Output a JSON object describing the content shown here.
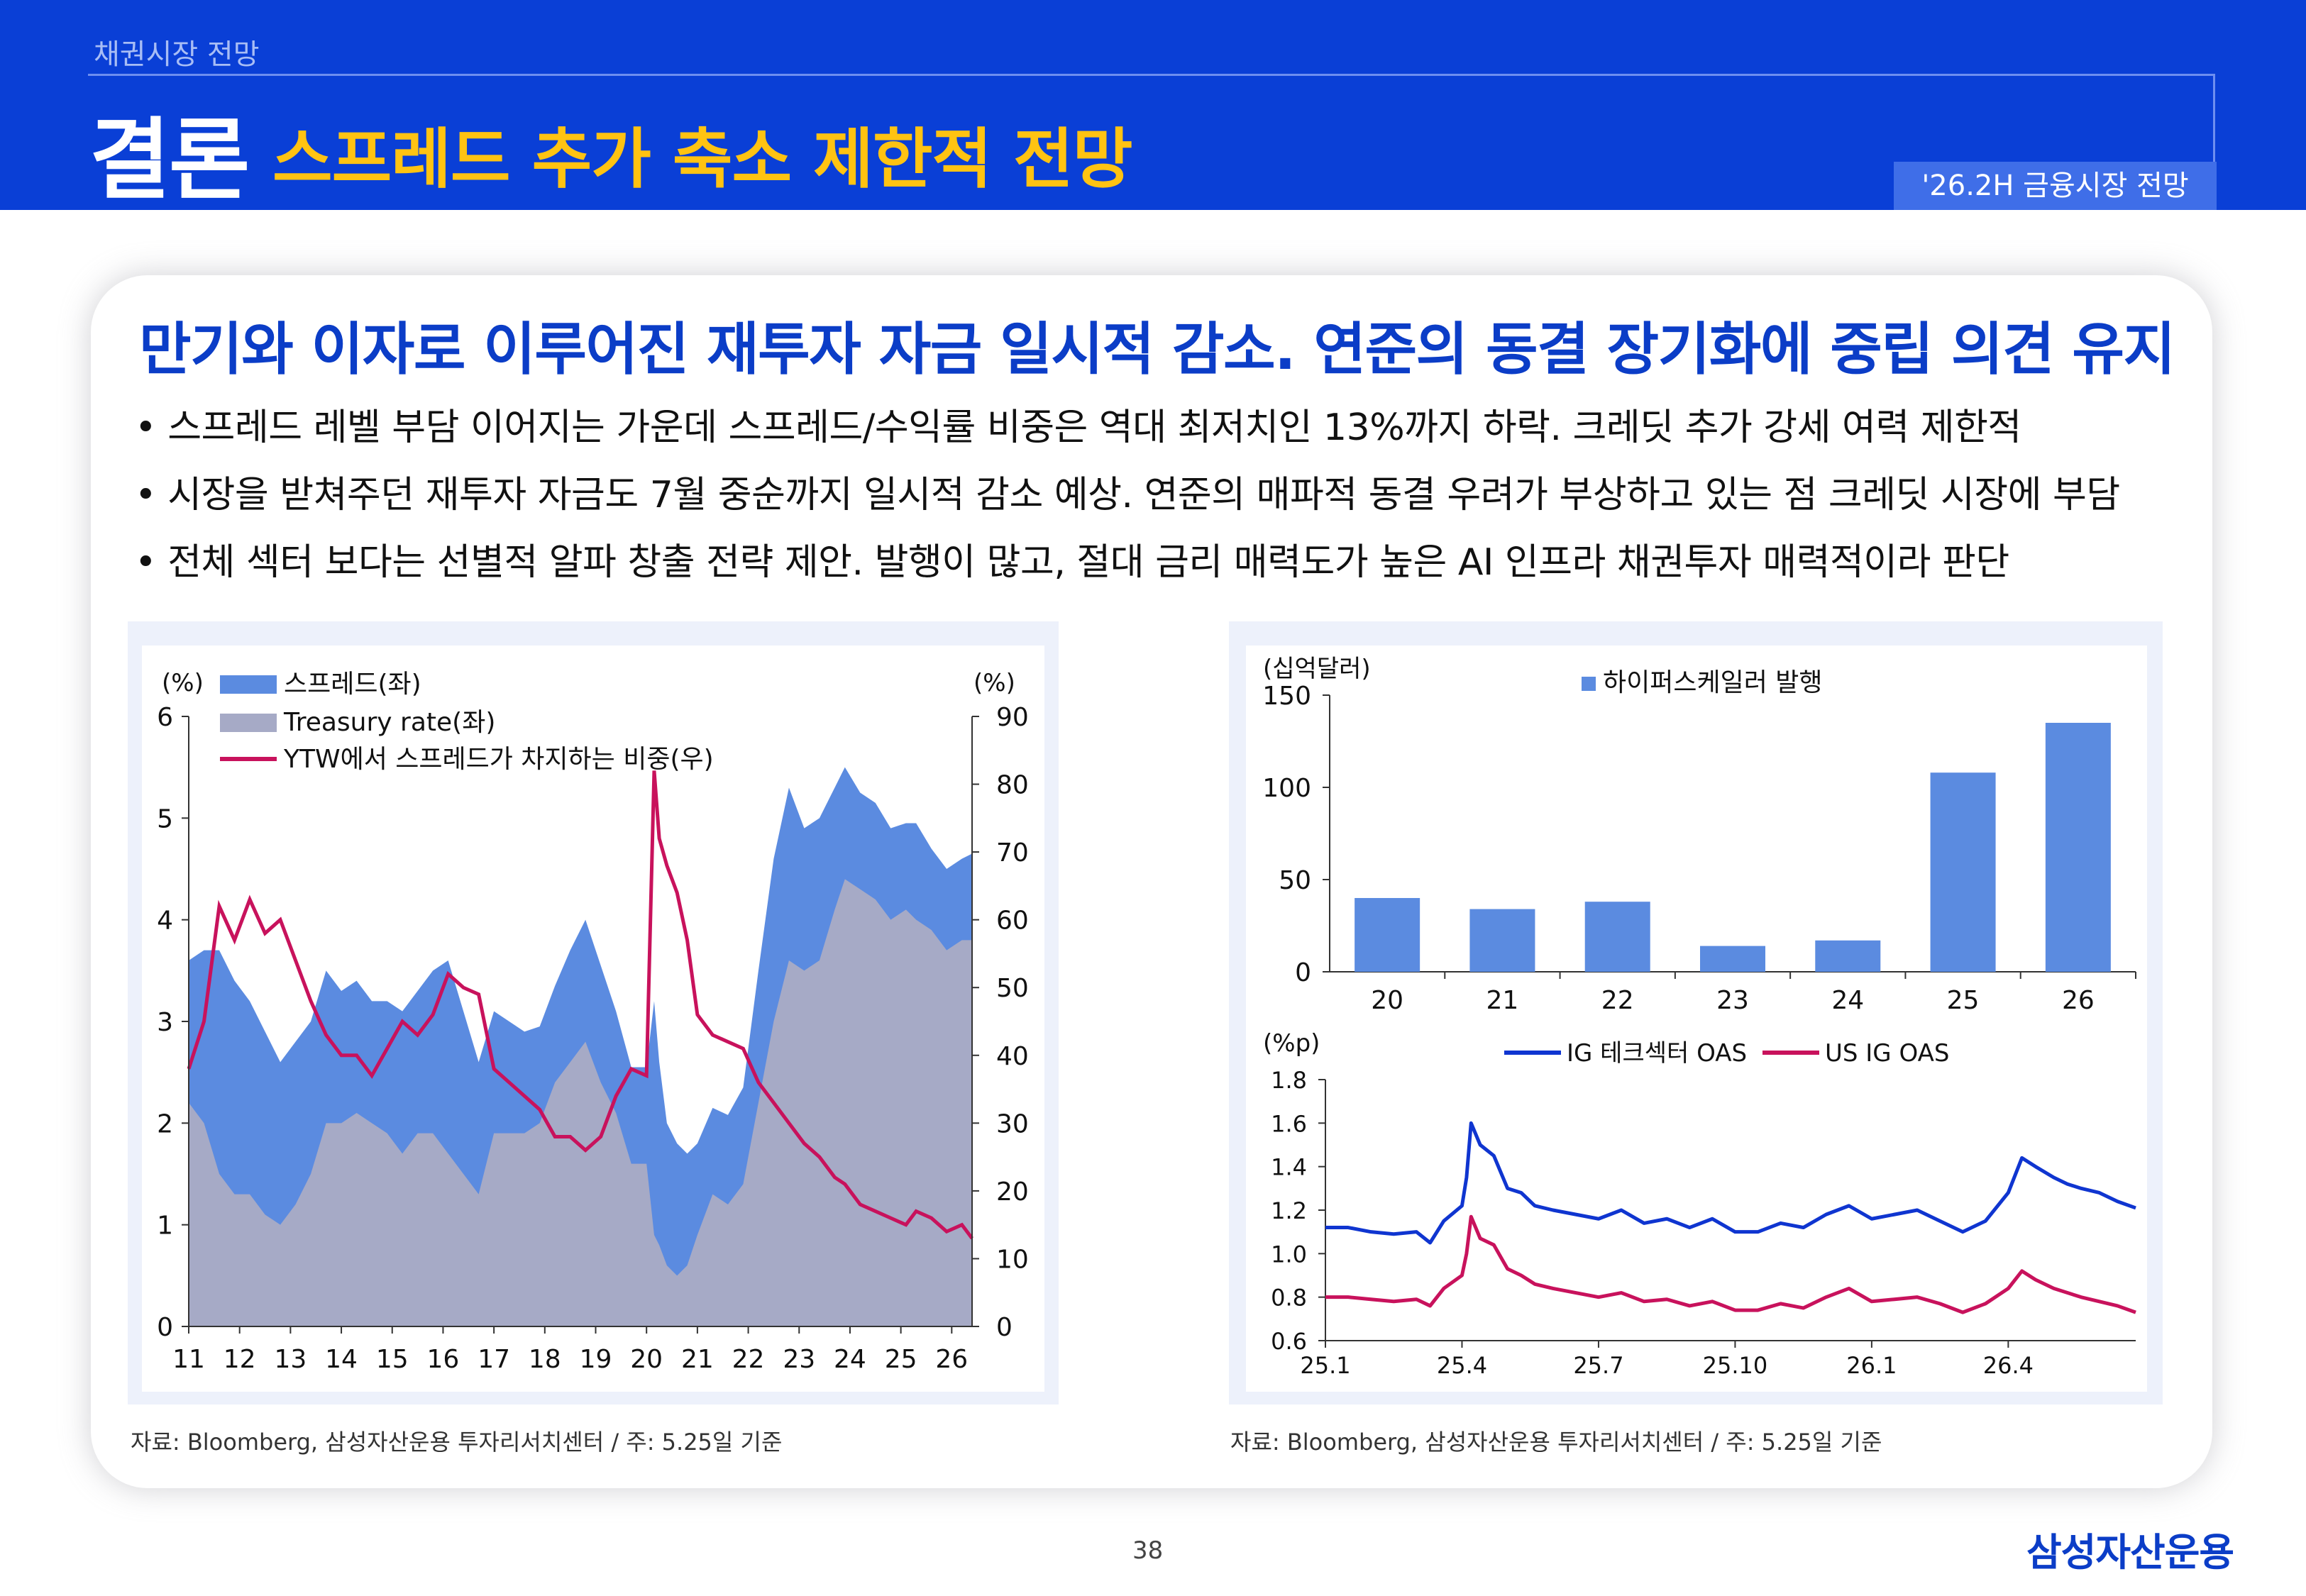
{
  "header": {
    "section": "채권시장 전망",
    "title": "결론",
    "subtitle": "스프레드 추가 축소 제한적 전망",
    "report_tag": "'26.2H 금융시장 전망"
  },
  "card": {
    "headline": "만기와 이자로 이루어진 재투자 자금 일시적 감소. 연준의 동결 장기화에 중립 의견 유지",
    "bullets": [
      "• 스프레드 레벨 부담 이어지는 가운데 스프레드/수익률 비중은 역대 최저치인 13%까지 하락. 크레딧 추가 강세 여력 제한적",
      "• 시장을 받쳐주던 재투자 자금도 7월 중순까지 일시적 감소 예상. 연준의 매파적 동결 우려가 부상하고 있는 점 크레딧 시장에 부담",
      "• 전체 섹터 보다는 선별적 알파 창출 전략 제안. 발행이 많고, 절대 금리 매력도가 높은 AI 인프라 채권투자 매력적이라 판단"
    ]
  },
  "sources": {
    "left": "자료: Bloomberg, 삼성자산운용 투자리서치센터 / 주: 5.25일 기준",
    "right": "자료: Bloomberg, 삼성자산운용 투자리서치센터 / 주: 5.25일 기준"
  },
  "footer": {
    "page": "38",
    "logo": "삼성자산운용"
  },
  "colors": {
    "blue_header": "#0a3fd6",
    "title_yellow": "#ffc312",
    "spread": "#5b8be0",
    "treasury": "#a6aac6",
    "ratio": "#c8125c",
    "bar": "#5b8be0",
    "ig_tech": "#0f35d0",
    "us_ig": "#c8125c"
  },
  "chart_data": [
    {
      "type": "area",
      "left_unit": "(%)",
      "right_unit": "(%)",
      "x_ticks": [
        "11",
        "12",
        "13",
        "14",
        "15",
        "16",
        "17",
        "18",
        "19",
        "20",
        "21",
        "22",
        "23",
        "24",
        "25",
        "26"
      ],
      "y_left": {
        "ticks": [
          "0",
          "1",
          "2",
          "3",
          "4",
          "5",
          "6"
        ],
        "range": [
          0,
          6
        ]
      },
      "y_right": {
        "ticks": [
          "0",
          "10",
          "20",
          "30",
          "40",
          "50",
          "60",
          "70",
          "80",
          "90"
        ],
        "range": [
          0,
          90
        ]
      },
      "legend": [
        "스프레드(좌)",
        "Treasury rate(좌)",
        "YTW에서 스프레드가 차지하는 비중(우)"
      ],
      "x_range": [
        2011.0,
        2026.4
      ],
      "series": [
        {
          "name": "스프레드(좌)",
          "axis": "left",
          "x": [
            2011.0,
            2011.3,
            2011.6,
            2011.9,
            2012.2,
            2012.5,
            2012.8,
            2013.1,
            2013.4,
            2013.7,
            2014.0,
            2014.3,
            2014.6,
            2014.9,
            2015.2,
            2015.5,
            2015.8,
            2016.1,
            2016.4,
            2016.7,
            2017.0,
            2017.3,
            2017.6,
            2017.9,
            2018.2,
            2018.5,
            2018.8,
            2019.1,
            2019.4,
            2019.7,
            2020.0,
            2020.15,
            2020.25,
            2020.4,
            2020.6,
            2020.8,
            2021.0,
            2021.3,
            2021.6,
            2021.9,
            2022.2,
            2022.5,
            2022.8,
            2023.1,
            2023.4,
            2023.7,
            2023.9,
            2024.2,
            2024.5,
            2024.8,
            2025.1,
            2025.3,
            2025.6,
            2025.9,
            2026.2,
            2026.4
          ],
          "values": [
            1.4,
            1.7,
            2.2,
            2.1,
            1.9,
            1.8,
            1.6,
            1.6,
            1.5,
            1.5,
            1.3,
            1.3,
            1.2,
            1.3,
            1.4,
            1.4,
            1.6,
            1.9,
            1.6,
            1.3,
            1.2,
            1.1,
            1.0,
            0.95,
            0.95,
            1.1,
            1.2,
            1.15,
            1.0,
            0.95,
            0.95,
            2.3,
            1.8,
            1.4,
            1.3,
            1.1,
            0.9,
            0.85,
            0.88,
            0.95,
            1.3,
            1.6,
            1.7,
            1.4,
            1.4,
            1.2,
            1.1,
            0.95,
            0.95,
            0.9,
            0.85,
            0.95,
            0.8,
            0.8,
            0.8,
            0.85
          ]
        },
        {
          "name": "Treasury rate(좌)",
          "axis": "left",
          "x": [
            2011.0,
            2011.3,
            2011.6,
            2011.9,
            2012.2,
            2012.5,
            2012.8,
            2013.1,
            2013.4,
            2013.7,
            2014.0,
            2014.3,
            2014.6,
            2014.9,
            2015.2,
            2015.5,
            2015.8,
            2016.1,
            2016.4,
            2016.7,
            2017.0,
            2017.3,
            2017.6,
            2017.9,
            2018.2,
            2018.5,
            2018.8,
            2019.1,
            2019.4,
            2019.7,
            2020.0,
            2020.15,
            2020.25,
            2020.4,
            2020.6,
            2020.8,
            2021.0,
            2021.3,
            2021.6,
            2021.9,
            2022.2,
            2022.5,
            2022.8,
            2023.1,
            2023.4,
            2023.7,
            2023.9,
            2024.2,
            2024.5,
            2024.8,
            2025.1,
            2025.3,
            2025.6,
            2025.9,
            2026.2,
            2026.4
          ],
          "values": [
            2.2,
            2.0,
            1.5,
            1.3,
            1.3,
            1.1,
            1.0,
            1.2,
            1.5,
            2.0,
            2.0,
            2.1,
            2.0,
            1.9,
            1.7,
            1.9,
            1.9,
            1.7,
            1.5,
            1.3,
            1.9,
            1.9,
            1.9,
            2.0,
            2.4,
            2.6,
            2.8,
            2.4,
            2.1,
            1.6,
            1.6,
            0.9,
            0.8,
            0.6,
            0.5,
            0.6,
            0.9,
            1.3,
            1.2,
            1.4,
            2.2,
            3.0,
            3.6,
            3.5,
            3.6,
            4.1,
            4.4,
            4.3,
            4.2,
            4.0,
            4.1,
            4.0,
            3.9,
            3.7,
            3.8,
            3.8
          ]
        },
        {
          "name": "YTW에서 스프레드가 차지하는 비중(우)",
          "axis": "right",
          "x": [
            2011.0,
            2011.3,
            2011.6,
            2011.9,
            2012.2,
            2012.5,
            2012.8,
            2013.1,
            2013.4,
            2013.7,
            2014.0,
            2014.3,
            2014.6,
            2014.9,
            2015.2,
            2015.5,
            2015.8,
            2016.1,
            2016.4,
            2016.7,
            2017.0,
            2017.3,
            2017.6,
            2017.9,
            2018.2,
            2018.5,
            2018.8,
            2019.1,
            2019.4,
            2019.7,
            2020.0,
            2020.15,
            2020.25,
            2020.4,
            2020.6,
            2020.8,
            2021.0,
            2021.3,
            2021.6,
            2021.9,
            2022.2,
            2022.5,
            2022.8,
            2023.1,
            2023.4,
            2023.7,
            2023.9,
            2024.2,
            2024.5,
            2024.8,
            2025.1,
            2025.3,
            2025.6,
            2025.9,
            2026.2,
            2026.4
          ],
          "values": [
            38,
            45,
            62,
            57,
            63,
            58,
            60,
            54,
            48,
            43,
            40,
            40,
            37,
            41,
            45,
            43,
            46,
            52,
            50,
            49,
            38,
            36,
            34,
            32,
            28,
            28,
            26,
            28,
            34,
            38,
            37,
            82,
            72,
            68,
            64,
            57,
            46,
            43,
            42,
            41,
            36,
            33,
            30,
            27,
            25,
            22,
            21,
            18,
            17,
            16,
            15,
            17,
            16,
            14,
            15,
            13
          ]
        }
      ]
    },
    {
      "type": "bar",
      "unit": "(십억달러)",
      "legend": "하이퍼스케일러 발행",
      "categories": [
        "20",
        "21",
        "22",
        "23",
        "24",
        "25",
        "26"
      ],
      "values": [
        40,
        34,
        38,
        14,
        17,
        108,
        135
      ],
      "y_ticks": [
        "0",
        "50",
        "100",
        "150"
      ],
      "ylim": [
        0,
        150
      ]
    },
    {
      "type": "line",
      "unit": "(%p)",
      "x_ticks": [
        "25.1",
        "25.4",
        "25.7",
        "25.10",
        "26.1",
        "26.4"
      ],
      "y_ticks": [
        "0.6",
        "0.8",
        "1.0",
        "1.2",
        "1.4",
        "1.6",
        "1.8"
      ],
      "ylim": [
        0.6,
        1.8
      ],
      "x_range": [
        0,
        17.8
      ],
      "series": [
        {
          "name": "IG 테크섹터 OAS",
          "x": [
            0,
            0.5,
            1,
            1.5,
            2,
            2.3,
            2.6,
            3,
            3.1,
            3.2,
            3.4,
            3.7,
            4,
            4.3,
            4.6,
            5,
            5.5,
            6,
            6.5,
            7,
            7.5,
            8,
            8.5,
            9,
            9.5,
            10,
            10.5,
            11,
            11.5,
            12,
            12.5,
            13,
            13.5,
            14,
            14.5,
            15,
            15.3,
            15.6,
            16,
            16.3,
            16.6,
            17,
            17.4,
            17.8
          ],
          "values": [
            1.12,
            1.12,
            1.1,
            1.09,
            1.1,
            1.05,
            1.15,
            1.22,
            1.35,
            1.6,
            1.5,
            1.45,
            1.3,
            1.28,
            1.22,
            1.2,
            1.18,
            1.16,
            1.2,
            1.14,
            1.16,
            1.12,
            1.16,
            1.1,
            1.1,
            1.14,
            1.12,
            1.18,
            1.22,
            1.16,
            1.18,
            1.2,
            1.15,
            1.1,
            1.15,
            1.28,
            1.44,
            1.4,
            1.35,
            1.32,
            1.3,
            1.28,
            1.24,
            1.21
          ]
        },
        {
          "name": "US IG OAS",
          "x": [
            0,
            0.5,
            1,
            1.5,
            2,
            2.3,
            2.6,
            3,
            3.1,
            3.2,
            3.4,
            3.7,
            4,
            4.3,
            4.6,
            5,
            5.5,
            6,
            6.5,
            7,
            7.5,
            8,
            8.5,
            9,
            9.5,
            10,
            10.5,
            11,
            11.5,
            12,
            12.5,
            13,
            13.5,
            14,
            14.5,
            15,
            15.3,
            15.6,
            16,
            16.3,
            16.6,
            17,
            17.4,
            17.8
          ],
          "values": [
            0.8,
            0.8,
            0.79,
            0.78,
            0.79,
            0.76,
            0.84,
            0.9,
            1.0,
            1.17,
            1.07,
            1.04,
            0.93,
            0.9,
            0.86,
            0.84,
            0.82,
            0.8,
            0.82,
            0.78,
            0.79,
            0.76,
            0.78,
            0.74,
            0.74,
            0.77,
            0.75,
            0.8,
            0.84,
            0.78,
            0.79,
            0.8,
            0.77,
            0.73,
            0.77,
            0.84,
            0.92,
            0.88,
            0.84,
            0.82,
            0.8,
            0.78,
            0.76,
            0.73
          ]
        }
      ]
    }
  ]
}
